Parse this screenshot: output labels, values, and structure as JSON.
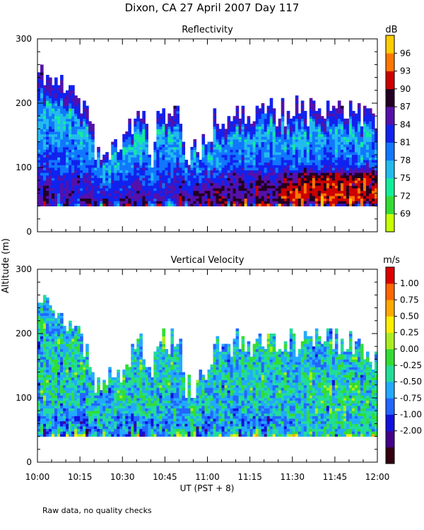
{
  "title": "Dixon, CA 27 April 2007  Day 117",
  "y_axis_label": "Altitude (m)",
  "x_axis_label": "UT  (PST + 8)",
  "footnote": "Raw data, no quality checks",
  "chart_data": [
    {
      "type": "heatmap",
      "title": "Reflectivity",
      "xlabel": "UT  (PST + 8)",
      "ylabel": "Altitude (m)",
      "x_range_minutes": [
        0,
        120
      ],
      "x_ticks": [
        "10:00",
        "10:15",
        "10:30",
        "10:45",
        "11:00",
        "11:15",
        "11:30",
        "11:45",
        "12:00"
      ],
      "ylim": [
        0,
        300
      ],
      "y_ticks": [
        0,
        100,
        200,
        300
      ],
      "data_altitude_range": [
        40,
        260
      ],
      "colorbar": {
        "unit": "dB",
        "range": [
          67.5,
          97.5
        ],
        "labels": [
          96,
          93,
          90,
          87,
          84,
          81,
          78,
          75,
          72,
          69
        ],
        "colors": [
          "#c8ff00",
          "#33dd33",
          "#11ee99",
          "#22bbee",
          "#1177ff",
          "#1122ee",
          "#5511aa",
          "#220022",
          "#cc0000",
          "#ff7700",
          "#ffcc00"
        ]
      },
      "echo_top_m": [
        [
          0,
          240
        ],
        [
          5,
          230
        ],
        [
          10,
          215
        ],
        [
          14,
          200
        ],
        [
          18,
          160
        ],
        [
          20,
          130
        ],
        [
          24,
          130
        ],
        [
          28,
          120
        ],
        [
          32,
          150
        ],
        [
          36,
          190
        ],
        [
          38,
          150
        ],
        [
          40,
          110
        ],
        [
          42,
          180
        ],
        [
          46,
          185
        ],
        [
          50,
          170
        ],
        [
          52,
          115
        ],
        [
          56,
          120
        ],
        [
          60,
          150
        ],
        [
          62,
          170
        ],
        [
          66,
          180
        ],
        [
          72,
          185
        ],
        [
          80,
          185
        ],
        [
          90,
          185
        ],
        [
          100,
          185
        ],
        [
          110,
          185
        ],
        [
          115,
          180
        ],
        [
          120,
          160
        ]
      ]
    },
    {
      "type": "heatmap",
      "title": "Vertical Velocity",
      "xlabel": "UT  (PST + 8)",
      "ylabel": "Altitude (m)",
      "x_range_minutes": [
        0,
        120
      ],
      "x_ticks": [
        "10:00",
        "10:15",
        "10:30",
        "10:45",
        "11:00",
        "11:15",
        "11:30",
        "11:45",
        "12:00"
      ],
      "ylim": [
        0,
        300
      ],
      "y_ticks": [
        0,
        100,
        200,
        300
      ],
      "data_altitude_range": [
        40,
        260
      ],
      "colorbar": {
        "unit": "m/s",
        "range": [
          -2.0,
          1.25
        ],
        "labels": [
          "1.00",
          "0.75",
          "0.50",
          "0.25",
          "0.00",
          "-0.25",
          "-0.50",
          "-0.75",
          "-1.00",
          "-2.00"
        ],
        "colors": [
          "#330011",
          "#440088",
          "#1111dd",
          "#2266ff",
          "#22aaff",
          "#22dd99",
          "#33dd33",
          "#aaee22",
          "#ffee00",
          "#ffaa00",
          "#ff6600",
          "#dd0000"
        ]
      },
      "echo_top_m": [
        [
          0,
          240
        ],
        [
          5,
          230
        ],
        [
          10,
          215
        ],
        [
          14,
          200
        ],
        [
          18,
          160
        ],
        [
          20,
          130
        ],
        [
          24,
          130
        ],
        [
          28,
          120
        ],
        [
          32,
          150
        ],
        [
          36,
          190
        ],
        [
          38,
          150
        ],
        [
          40,
          110
        ],
        [
          42,
          180
        ],
        [
          46,
          185
        ],
        [
          50,
          170
        ],
        [
          52,
          115
        ],
        [
          56,
          120
        ],
        [
          60,
          150
        ],
        [
          62,
          170
        ],
        [
          66,
          180
        ],
        [
          72,
          185
        ],
        [
          80,
          185
        ],
        [
          90,
          185
        ],
        [
          100,
          185
        ],
        [
          110,
          185
        ],
        [
          115,
          180
        ],
        [
          120,
          160
        ]
      ]
    }
  ]
}
